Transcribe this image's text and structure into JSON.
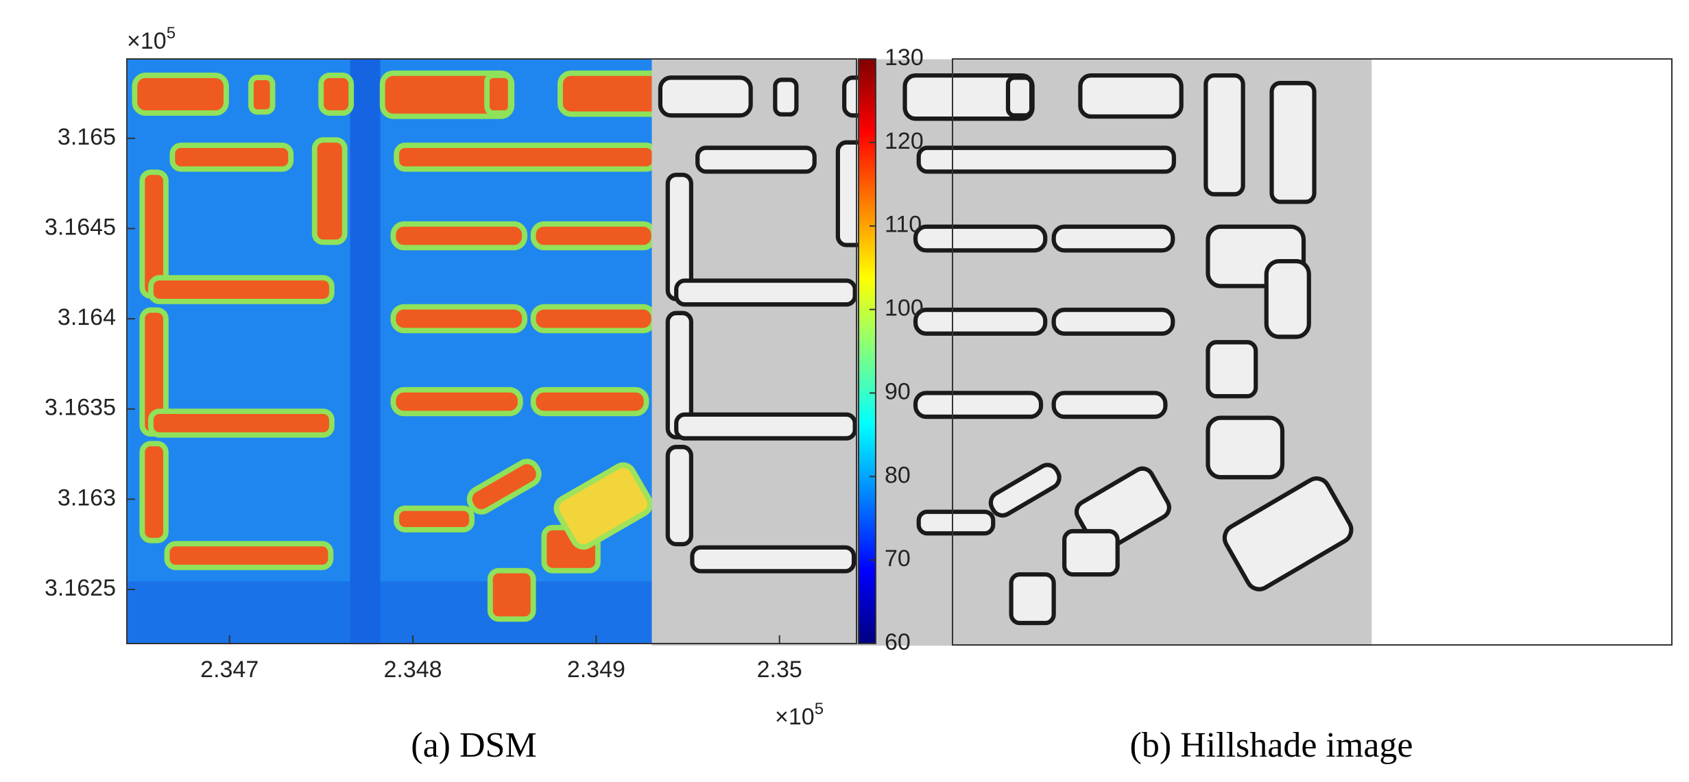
{
  "chart_data": [
    {
      "type": "image",
      "caption": "(a) DSM",
      "y_multiplier": {
        "base": "×10",
        "exponent": "5"
      },
      "x_multiplier": {
        "base": "×10",
        "exponent": "5"
      },
      "xlim": [
        2.34644,
        2.35042
      ],
      "xticks": [
        2.347,
        2.348,
        2.349,
        2.35
      ],
      "ylim": [
        3.1622,
        3.16544
      ],
      "yticks": [
        3.1625,
        3.163,
        3.1635,
        3.164,
        3.1645,
        3.165
      ],
      "colorbar": {
        "colormap": "jet",
        "clim": [
          60,
          130
        ],
        "ticks": [
          60,
          70,
          80,
          90,
          100,
          110,
          120,
          130
        ]
      }
    },
    {
      "type": "image",
      "caption": "(b) Hillshade image"
    }
  ]
}
